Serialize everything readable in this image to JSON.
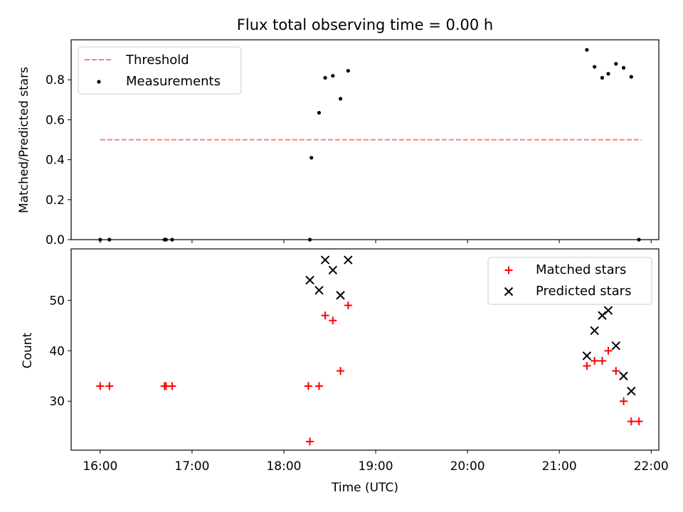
{
  "chart_data": [
    {
      "type": "scatter",
      "title": "Flux total observing time = 0.00 h",
      "xlabel": "",
      "ylabel": "Matched/Predicted stars",
      "xlim": [
        "15:41",
        "22:05"
      ],
      "ylim": [
        0,
        1.0
      ],
      "yticks": [
        "0.0",
        "0.2",
        "0.4",
        "0.6",
        "0.8"
      ],
      "legend_position": "top-left",
      "threshold": {
        "name": "Threshold",
        "value": 0.5,
        "x_start": "16:00",
        "x_end": "21:54",
        "color": "#ff7f7f"
      },
      "series": [
        {
          "name": "Measurements",
          "color": "#000000",
          "x": [
            "16:00",
            "16:06",
            "16:42",
            "16:43",
            "16:47",
            "18:17",
            "18:18",
            "18:23",
            "18:27",
            "18:32",
            "18:37",
            "18:42",
            "21:18",
            "21:23",
            "21:28",
            "21:32",
            "21:37",
            "21:42",
            "21:47",
            "21:52"
          ],
          "y": [
            0,
            0,
            0,
            0,
            0,
            0,
            0.41,
            0.635,
            0.81,
            0.82,
            0.705,
            0.845,
            0.95,
            0.865,
            0.81,
            0.83,
            0.88,
            0.86,
            0.815,
            0
          ]
        }
      ]
    },
    {
      "type": "scatter",
      "xlabel": "Time (UTC)",
      "ylabel": "Count",
      "xlim": [
        "15:41",
        "22:05"
      ],
      "ylim": [
        20.3,
        60.2
      ],
      "yticks": [
        "30",
        "40",
        "50"
      ],
      "xticks": [
        "16:00",
        "17:00",
        "18:00",
        "19:00",
        "20:00",
        "21:00",
        "22:00"
      ],
      "legend_position": "top-right",
      "series": [
        {
          "name": "Matched stars",
          "marker": "+",
          "color": "#ff0000",
          "x": [
            "16:00",
            "16:06",
            "16:42",
            "16:43",
            "16:47",
            "18:16",
            "18:17",
            "18:23",
            "18:27",
            "18:32",
            "18:37",
            "18:42",
            "21:18",
            "21:23",
            "21:28",
            "21:32",
            "21:37",
            "21:42",
            "21:47",
            "21:52"
          ],
          "y": [
            33,
            33,
            33,
            33,
            33,
            33,
            22,
            33,
            47,
            46,
            36,
            49,
            37,
            38,
            38,
            40,
            36,
            30,
            26,
            26
          ]
        },
        {
          "name": "Predicted stars",
          "marker": "x",
          "color": "#000000",
          "x": [
            "18:17",
            "18:23",
            "18:27",
            "18:32",
            "18:37",
            "18:42",
            "21:18",
            "21:23",
            "21:28",
            "21:32",
            "21:37",
            "21:42",
            "21:47"
          ],
          "y": [
            54,
            52,
            58,
            56,
            51,
            58,
            39,
            44,
            47,
            48,
            41,
            35,
            32
          ]
        }
      ]
    }
  ]
}
